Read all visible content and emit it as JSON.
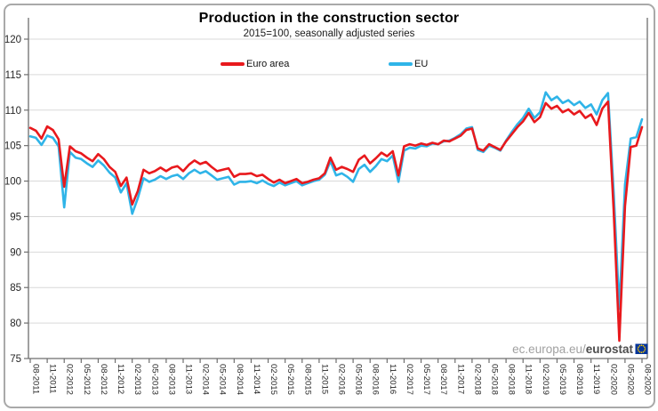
{
  "chart": {
    "title": "Production in the construction sector",
    "subtitle": "2015=100, seasonally adjusted series",
    "watermark": {
      "prefix": "ec.europa.eu/",
      "brand": "eurostat"
    },
    "legend": [
      {
        "label": "Euro area",
        "color": "#e8191d"
      },
      {
        "label": "EU",
        "color": "#2fb4e8"
      }
    ],
    "colors": {
      "euro_area": "#e8191d",
      "eu": "#2fb4e8",
      "gridline": "#d9d9d9",
      "axis": "#6e6e6e",
      "tick_text": "#262626",
      "flag_blue": "#003399",
      "flag_stars": "#ffcc00"
    }
  },
  "chart_data": {
    "type": "line",
    "title": "Production in the construction sector",
    "subtitle": "2015=100, seasonally adjusted series",
    "xlabel": "",
    "ylabel": "",
    "ylim": [
      75,
      120
    ],
    "y_ticks": [
      75,
      80,
      85,
      90,
      95,
      100,
      105,
      110,
      115,
      120
    ],
    "grid": "horizontal",
    "legend_position": "top-center",
    "x_unit": "month",
    "x_range": "08-2011 to 08-2020, monthly",
    "x_tick_every_months": 3,
    "x_tick_labels": [
      "08-2011",
      "11-2011",
      "02-2012",
      "05-2012",
      "08-2012",
      "11-2012",
      "02-2013",
      "05-2013",
      "08-2013",
      "11-2013",
      "02-2014",
      "05-2014",
      "08-2014",
      "11-2014",
      "02-2015",
      "05-2015",
      "08-2015",
      "11-2015",
      "02-2016",
      "05-2016",
      "08-2016",
      "11-2016",
      "02-2017",
      "05-2017",
      "08-2017",
      "11-2017",
      "02-2018",
      "05-2018",
      "08-2018",
      "11-2018",
      "02-2019",
      "05-2019",
      "08-2019",
      "11-2019",
      "02-2020",
      "05-2020",
      "08-2020"
    ],
    "series": [
      {
        "name": "EU",
        "color": "#2fb4e8",
        "values": [
          106.3,
          106.1,
          105.1,
          106.4,
          106.1,
          104.9,
          96.3,
          104.1,
          103.3,
          103.1,
          102.5,
          102.0,
          102.9,
          102.2,
          101.2,
          100.5,
          98.4,
          99.7,
          95.4,
          97.6,
          100.4,
          99.9,
          100.2,
          100.7,
          100.3,
          100.7,
          100.9,
          100.3,
          101.1,
          101.6,
          101.1,
          101.4,
          100.8,
          100.2,
          100.4,
          100.6,
          99.5,
          99.9,
          99.9,
          100.0,
          99.7,
          100.1,
          99.6,
          99.3,
          99.8,
          99.4,
          99.7,
          100.0,
          99.4,
          99.7,
          100.0,
          100.2,
          100.9,
          102.8,
          100.8,
          101.1,
          100.6,
          99.9,
          101.7,
          102.3,
          101.3,
          102.1,
          103.1,
          102.8,
          103.6,
          99.9,
          104.3,
          104.7,
          104.6,
          105.0,
          104.9,
          105.3,
          105.2,
          105.6,
          105.7,
          106.1,
          106.6,
          107.4,
          107.6,
          104.4,
          104.1,
          105.0,
          104.7,
          104.3,
          105.7,
          106.9,
          108.0,
          108.9,
          110.2,
          108.9,
          109.7,
          112.5,
          111.4,
          111.9,
          111.0,
          111.4,
          110.7,
          111.2,
          110.3,
          110.8,
          109.4,
          111.4,
          112.4,
          98.5,
          82.0,
          99.5,
          106.0,
          106.2,
          108.7
        ]
      },
      {
        "name": "Euro area",
        "color": "#e8191d",
        "values": [
          107.5,
          107.1,
          106.0,
          107.7,
          107.2,
          105.9,
          99.2,
          104.9,
          104.2,
          103.9,
          103.3,
          102.8,
          103.8,
          103.1,
          102.0,
          101.3,
          99.3,
          100.5,
          96.7,
          98.6,
          101.6,
          101.1,
          101.4,
          101.9,
          101.4,
          101.9,
          102.1,
          101.4,
          102.3,
          102.9,
          102.4,
          102.7,
          102.0,
          101.4,
          101.6,
          101.8,
          100.6,
          101.0,
          101.0,
          101.1,
          100.7,
          100.9,
          100.3,
          99.8,
          100.2,
          99.7,
          100.0,
          100.3,
          99.7,
          99.9,
          100.2,
          100.4,
          101.1,
          103.3,
          101.6,
          102.0,
          101.7,
          101.3,
          103.0,
          103.6,
          102.5,
          103.2,
          104.0,
          103.5,
          104.2,
          100.8,
          104.9,
          105.2,
          105.0,
          105.3,
          105.1,
          105.4,
          105.2,
          105.7,
          105.6,
          106.0,
          106.4,
          107.2,
          107.4,
          104.6,
          104.3,
          105.2,
          104.8,
          104.4,
          105.6,
          106.6,
          107.6,
          108.4,
          109.6,
          108.3,
          109.0,
          111.0,
          110.2,
          110.6,
          109.7,
          110.1,
          109.4,
          109.9,
          108.9,
          109.4,
          107.9,
          110.2,
          111.2,
          96.0,
          77.5,
          96.5,
          104.8,
          105.0,
          107.6
        ]
      }
    ]
  }
}
